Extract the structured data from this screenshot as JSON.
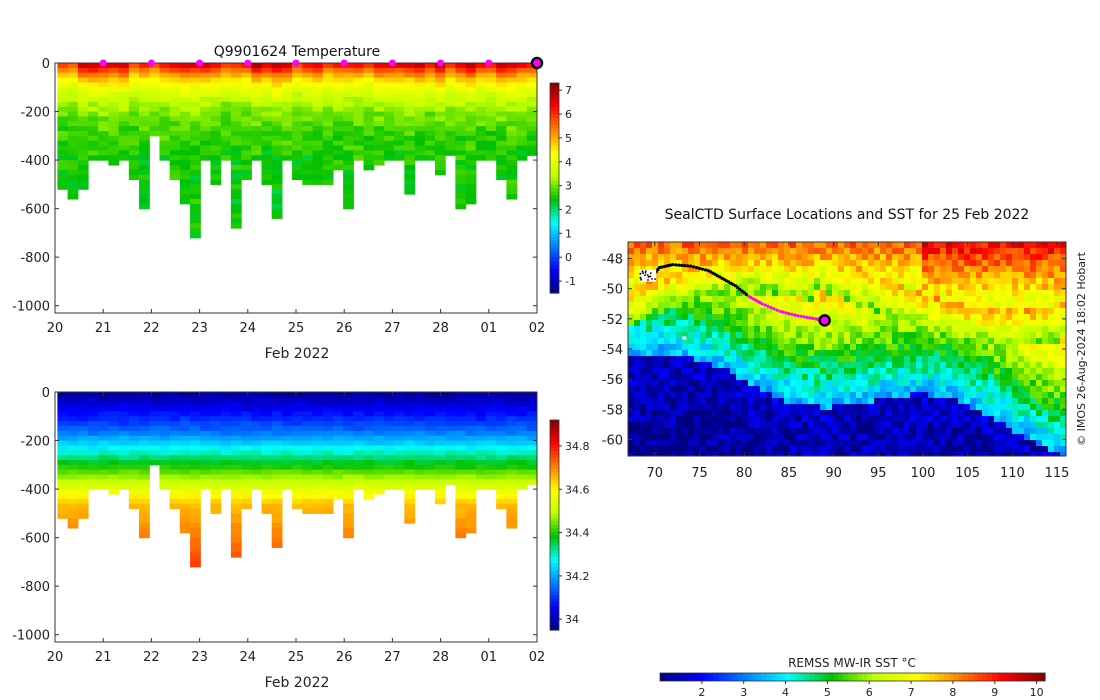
{
  "chart_data": [
    {
      "id": "temperature",
      "type": "heatmap",
      "title": "Q9901624  Temperature",
      "xlabel": "Feb 2022",
      "ylabel": "",
      "x_tick_labels": [
        "20",
        "21",
        "22",
        "23",
        "24",
        "25",
        "26",
        "27",
        "28",
        "01",
        "02"
      ],
      "x_range_days": [
        0,
        10
      ],
      "y_ticks": [
        0,
        -200,
        -400,
        -600,
        -800,
        -1000
      ],
      "ylim": [
        -1030,
        0
      ],
      "colorbar": {
        "ticks": [
          -1,
          0,
          1,
          2,
          3,
          4,
          5,
          6,
          7
        ],
        "range": [
          -1.5,
          7.3
        ],
        "stops": [
          "#00007f",
          "#0000ff",
          "#0080ff",
          "#00ffff",
          "#00c000",
          "#c0ff00",
          "#ffff00",
          "#ff8000",
          "#ff0000",
          "#800000"
        ]
      },
      "markers_day": [
        1,
        2,
        3,
        4,
        5,
        6,
        7,
        8,
        9
      ],
      "marker_color": "#ff00ff",
      "end_marker_day": 10,
      "surface_value": 6.2,
      "deep_value": 2.4,
      "profile_depths": [
        520,
        560,
        520,
        400,
        400,
        420,
        400,
        470,
        600,
        300,
        400,
        480,
        580,
        720,
        400,
        500,
        400,
        680,
        480,
        400,
        500,
        640,
        400,
        470,
        500,
        500,
        500,
        430,
        600,
        400,
        440,
        420,
        400,
        400,
        540,
        400,
        400,
        450,
        380,
        600,
        580,
        400,
        400,
        470,
        560,
        400,
        370
      ]
    },
    {
      "id": "salinity",
      "type": "heatmap",
      "title": "",
      "xlabel": "Feb 2022",
      "ylabel": "",
      "x_tick_labels": [
        "20",
        "21",
        "22",
        "23",
        "24",
        "25",
        "26",
        "27",
        "28",
        "01",
        "02"
      ],
      "x_range_days": [
        0,
        10
      ],
      "y_ticks": [
        0,
        -200,
        -400,
        -600,
        -800,
        -1000
      ],
      "ylim": [
        -1030,
        0
      ],
      "colorbar": {
        "ticks": [
          34,
          34.2,
          34.4,
          34.6,
          34.8
        ],
        "range": [
          33.95,
          34.92
        ],
        "stops": [
          "#00007f",
          "#0000ff",
          "#0080ff",
          "#00ffff",
          "#00c000",
          "#c0ff00",
          "#ffff00",
          "#ff8000",
          "#ff0000",
          "#800000"
        ]
      },
      "surface_value": 33.98,
      "deep_value": 34.65,
      "profile_depths": [
        520,
        560,
        520,
        400,
        400,
        420,
        400,
        470,
        600,
        300,
        400,
        480,
        580,
        720,
        400,
        500,
        400,
        680,
        480,
        400,
        500,
        640,
        400,
        470,
        500,
        500,
        500,
        430,
        600,
        400,
        440,
        420,
        400,
        400,
        540,
        400,
        400,
        450,
        380,
        600,
        580,
        400,
        400,
        470,
        560,
        400,
        370
      ]
    },
    {
      "id": "sst_map",
      "type": "heatmap",
      "title": "SealCTD Surface Locations and SST for 25 Feb 2022",
      "x_ticks": [
        70,
        75,
        80,
        85,
        90,
        95,
        100,
        105,
        110,
        115
      ],
      "xlim": [
        67,
        116
      ],
      "y_ticks": [
        -48,
        -50,
        -52,
        -54,
        -56,
        -58,
        -60
      ],
      "ylim": [
        -61.1,
        -46.9
      ],
      "track": [
        [
          68.4,
          -49.0
        ],
        [
          69.5,
          -49.4
        ],
        [
          70.5,
          -48.6
        ],
        [
          72.0,
          -48.4
        ],
        [
          74.0,
          -48.5
        ],
        [
          76.0,
          -48.8
        ],
        [
          77.5,
          -49.3
        ],
        [
          79.0,
          -49.8
        ],
        [
          80.5,
          -50.5
        ],
        [
          82.0,
          -51.0
        ],
        [
          84.0,
          -51.5
        ],
        [
          86.0,
          -51.8
        ],
        [
          88.0,
          -52.0
        ],
        [
          89.0,
          -52.1
        ]
      ],
      "magenta_from_index": 8,
      "current_location": [
        89.0,
        -52.1
      ],
      "colorbar": {
        "label": "REMSS MW-IR SST °C",
        "ticks": [
          2,
          3,
          4,
          5,
          6,
          7,
          8,
          9,
          10
        ],
        "range": [
          1.0,
          10.2
        ]
      },
      "credit": "© IMOS 26-Aug-2024 18:02 Hobart"
    }
  ]
}
